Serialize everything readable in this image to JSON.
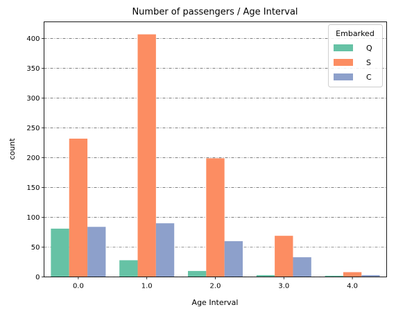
{
  "chart_data": {
    "type": "bar",
    "title": "Number of passengers / Age Interval",
    "xlabel": "Age Interval",
    "ylabel": "count",
    "categories": [
      "0.0",
      "1.0",
      "2.0",
      "3.0",
      "4.0"
    ],
    "ylim": [
      0,
      428
    ],
    "yticks": [
      0,
      50,
      100,
      150,
      200,
      250,
      300,
      350,
      400
    ],
    "grid": "horizontal dashed",
    "legend": {
      "title": "Embarked",
      "placement": "top-right"
    },
    "series": [
      {
        "name": "Q",
        "color": "#66c2a5",
        "values": [
          81,
          28,
          10,
          3,
          2
        ]
      },
      {
        "name": "S",
        "color": "#fc8d62",
        "values": [
          232,
          407,
          199,
          69,
          8
        ]
      },
      {
        "name": "C",
        "color": "#8da0cb",
        "values": [
          84,
          90,
          60,
          33,
          3
        ]
      }
    ]
  }
}
